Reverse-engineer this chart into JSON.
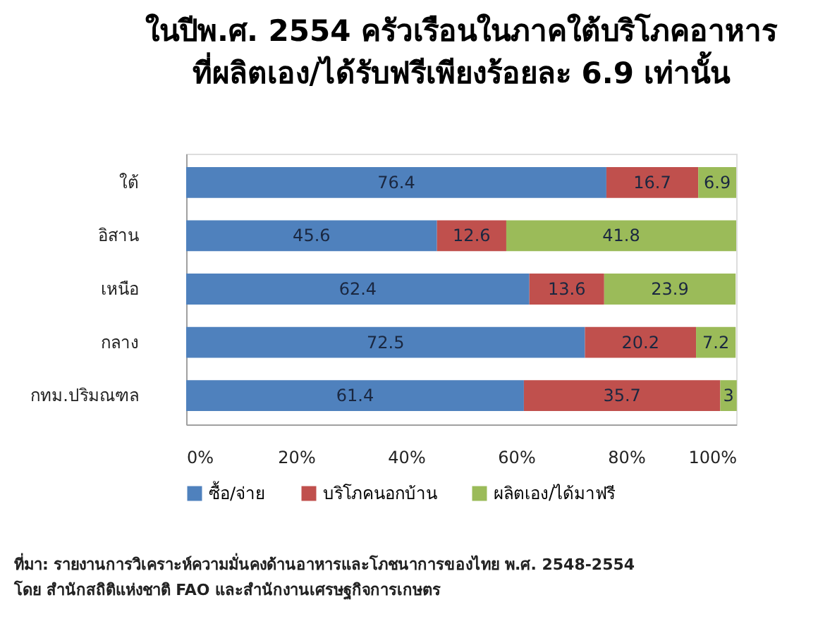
{
  "chart_data": {
    "type": "bar",
    "orientation": "horizontal",
    "stacked": true,
    "title": "ในปีพ.ศ. 2554 ครัวเรือนในภาคใต้บริโภคอาหาร\nที่ผลิตเอง/ได้รับฟรีเพียงร้อยละ 6.9 เท่านั้น",
    "categories": [
      "ใต้",
      "อิสาน",
      "เหนือ",
      "กลาง",
      "กทม.ปริมณฑล"
    ],
    "series": [
      {
        "name": "ซื้อ/จ่าย",
        "color": "#4f81bd",
        "values": [
          76.4,
          45.6,
          62.4,
          72.5,
          61.4
        ]
      },
      {
        "name": "บริโภคนอกบ้าน",
        "color": "#c0504d",
        "values": [
          16.7,
          12.6,
          13.6,
          20.2,
          35.7
        ]
      },
      {
        "name": "ผลิตเอง/ได้มาฟรี",
        "color": "#9bbb59",
        "values": [
          6.9,
          41.8,
          23.9,
          7.2,
          3
        ]
      }
    ],
    "xlim": [
      0,
      100
    ],
    "xticks": [
      {
        "value": 0,
        "label": "0%"
      },
      {
        "value": 20,
        "label": "20%"
      },
      {
        "value": 40,
        "label": "40%"
      },
      {
        "value": 60,
        "label": "60%"
      },
      {
        "value": 80,
        "label": "80%"
      },
      {
        "value": 100,
        "label": "100%"
      }
    ],
    "data_labels": true,
    "legend": "bottom",
    "grid": false,
    "annotations": [
      "ที่มา: รายงานการวิเคราะห์ความมั่นคงด้านอาหารและโภชนาการของไทย พ.ศ. 2548-2554",
      "โดย สำนักสถิติแห่งชาติ FAO และสำนักงานเศรษฐกิจการเกษตร"
    ]
  }
}
